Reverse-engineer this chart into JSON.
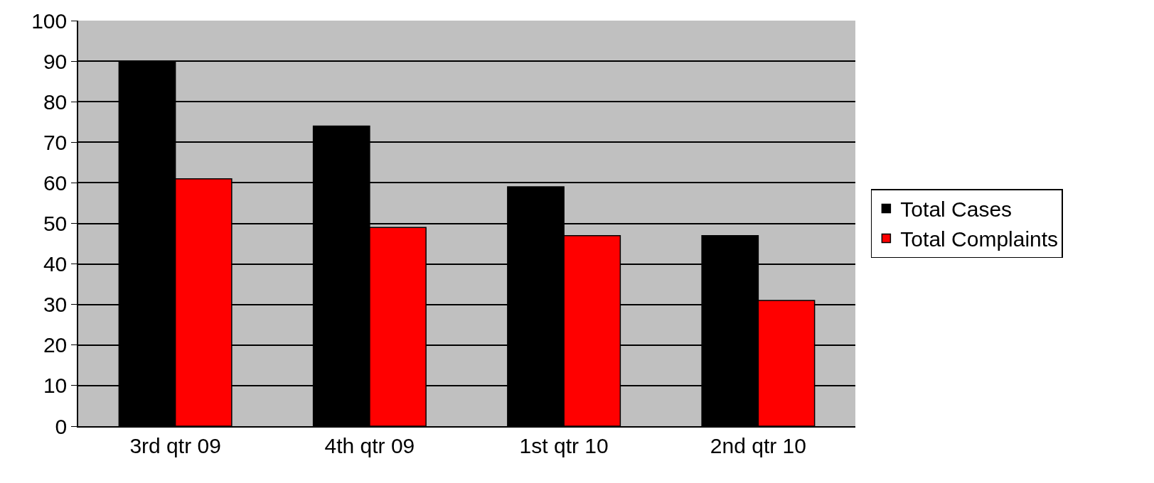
{
  "chart_data": {
    "type": "bar",
    "categories": [
      "3rd qtr 09",
      "4th qtr 09",
      "1st qtr 10",
      "2nd qtr 10"
    ],
    "series": [
      {
        "name": "Total Cases",
        "color": "#000000",
        "values": [
          90,
          74,
          59,
          47
        ]
      },
      {
        "name": "Total Complaints",
        "color": "#ff0000",
        "values": [
          61,
          49,
          47,
          31
        ]
      }
    ],
    "ylim": [
      0,
      100
    ],
    "yticks": [
      0,
      10,
      20,
      30,
      40,
      50,
      60,
      70,
      80,
      90,
      100
    ],
    "grid": "y",
    "legend": "right"
  }
}
